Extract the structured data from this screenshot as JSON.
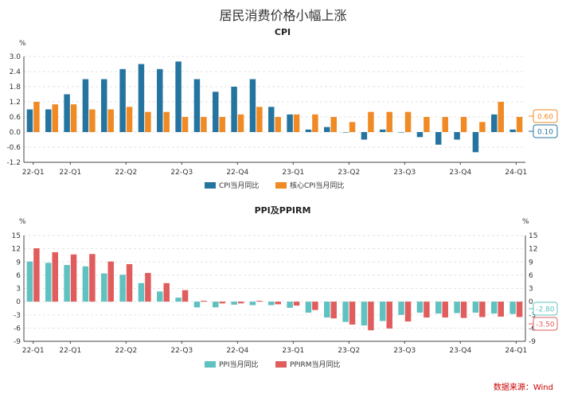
{
  "title": "居民消费价格小幅上涨",
  "source": "数据来源：Wind",
  "chart_data": [
    {
      "type": "bar",
      "title": "CPI",
      "unit": "%",
      "ylim": [
        -1.2,
        3.0
      ],
      "yticks": [
        3.0,
        2.4,
        1.8,
        1.2,
        0.6,
        0.0,
        -0.6,
        -1.2
      ],
      "x_tick_labels": [
        "22-Q1",
        "22-Q1",
        "22-Q2",
        "22-Q3",
        "22-Q4",
        "23-Q1",
        "23-Q2",
        "23-Q3",
        "23-Q4",
        "24-Q1"
      ],
      "n_periods": 27,
      "grid": true,
      "legend_position": "bottom",
      "series": [
        {
          "name": "CPI当月同比",
          "color": "#2574a0",
          "values": [
            0.9,
            0.9,
            1.5,
            2.1,
            2.1,
            2.5,
            2.7,
            2.5,
            2.8,
            2.1,
            1.6,
            1.8,
            2.1,
            1.0,
            0.7,
            0.1,
            0.2,
            0.0,
            -0.3,
            0.1,
            0.0,
            -0.2,
            -0.5,
            -0.3,
            -0.8,
            0.7,
            0.1
          ]
        },
        {
          "name": "核心CPI当月同比",
          "color": "#f08a24",
          "values": [
            1.2,
            1.1,
            1.1,
            0.9,
            0.9,
            1.0,
            0.8,
            0.8,
            0.6,
            0.6,
            0.6,
            0.7,
            1.0,
            0.6,
            0.7,
            0.7,
            0.6,
            0.4,
            0.8,
            0.8,
            0.8,
            0.6,
            0.6,
            0.6,
            0.4,
            1.2,
            0.6
          ]
        }
      ],
      "end_labels": [
        {
          "text": "0.60",
          "color": "#f08a24"
        },
        {
          "text": "0.10",
          "color": "#2574a0"
        }
      ]
    },
    {
      "type": "bar",
      "title": "PPI及PPIRM",
      "unit": "%",
      "ylim": [
        -9,
        15
      ],
      "yticks": [
        15,
        12,
        9,
        6,
        3,
        0,
        -3,
        -6,
        -9
      ],
      "x_tick_labels": [
        "22-Q1",
        "22-Q1",
        "22-Q2",
        "22-Q3",
        "22-Q4",
        "23-Q1",
        "23-Q2",
        "23-Q3",
        "23-Q4",
        "24-Q1"
      ],
      "n_periods": 27,
      "grid": true,
      "legend_position": "bottom",
      "series": [
        {
          "name": "PPI当月同比",
          "color": "#5fc1c0",
          "values": [
            9.1,
            8.8,
            8.3,
            8.0,
            6.4,
            6.1,
            4.2,
            2.3,
            0.9,
            -1.3,
            -1.3,
            -0.7,
            -0.8,
            -0.8,
            -1.4,
            -2.5,
            -3.6,
            -4.6,
            -5.4,
            -4.4,
            -3.0,
            -2.5,
            -2.7,
            -2.6,
            -2.5,
            -2.7,
            -2.8
          ]
        },
        {
          "name": "PPIRM当月同比",
          "color": "#e15c5c",
          "values": [
            12.1,
            11.2,
            10.7,
            10.8,
            9.1,
            8.5,
            6.5,
            4.2,
            2.6,
            0.2,
            -0.4,
            -0.4,
            0.2,
            -0.6,
            -0.9,
            -1.9,
            -3.8,
            -5.2,
            -6.5,
            -6.1,
            -4.5,
            -3.6,
            -3.6,
            -3.7,
            -3.5,
            -3.4,
            -3.5
          ]
        }
      ],
      "end_labels": [
        {
          "text": "-2.80",
          "color": "#5fc1c0"
        },
        {
          "text": "-3.50",
          "color": "#e15c5c"
        }
      ]
    }
  ]
}
